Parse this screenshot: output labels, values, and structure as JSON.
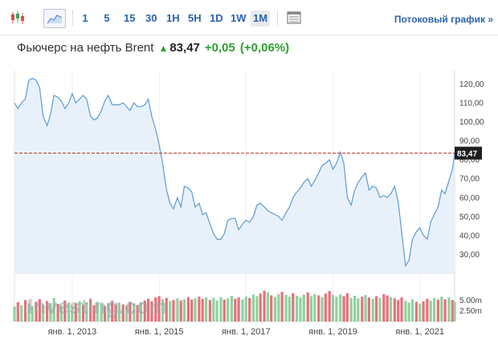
{
  "toolbar": {
    "timeframes": [
      "1",
      "5",
      "15",
      "30",
      "1H",
      "5H",
      "1D",
      "1W",
      "1M"
    ],
    "active_timeframe": "1M",
    "stream_link": "Потоковый график »"
  },
  "header": {
    "instrument": "Фьючерс на нефть Brent",
    "price": "83,47",
    "change": "+0,05",
    "change_pct": "(+0,06%)",
    "arrow_color": "#2ca02c"
  },
  "watermark": "Investing.com",
  "colors": {
    "line": "#5b9bd5",
    "area": "#e8f1fa",
    "price_line": "#c0392b",
    "vol_up": "#8fd19e",
    "vol_down": "#e8707a",
    "link": "#2a63ad"
  },
  "chart_data": {
    "type": "area",
    "y_ticks": [
      "120,00",
      "110,00",
      "100,00",
      "90,00",
      "80,00",
      "70,00",
      "60,00",
      "50,00",
      "40,00",
      "30,00"
    ],
    "ylim": [
      20,
      127
    ],
    "current_price": 83.47,
    "current_price_label": "83,47",
    "x_ticks": [
      "янв. 1, 2013",
      "янв. 1, 2015",
      "янв. 1, 2017",
      "янв. 1, 2019",
      "янв. 1, 2021"
    ],
    "x_tick_years": [
      2013,
      2015,
      2017,
      2019,
      2021
    ],
    "x_range": [
      2011.67,
      2021.8
    ],
    "series": [
      {
        "points": [
          [
            2011.67,
            110
          ],
          [
            2011.75,
            107
          ],
          [
            2011.83,
            110
          ],
          [
            2011.92,
            112
          ],
          [
            2012.0,
            122
          ],
          [
            2012.08,
            123
          ],
          [
            2012.17,
            122
          ],
          [
            2012.25,
            118
          ],
          [
            2012.33,
            103
          ],
          [
            2012.42,
            98
          ],
          [
            2012.5,
            104
          ],
          [
            2012.58,
            114
          ],
          [
            2012.67,
            113
          ],
          [
            2012.75,
            111
          ],
          [
            2012.83,
            107
          ],
          [
            2012.92,
            110
          ],
          [
            2013.0,
            115
          ],
          [
            2013.08,
            110
          ],
          [
            2013.17,
            112
          ],
          [
            2013.25,
            114
          ],
          [
            2013.33,
            112
          ],
          [
            2013.42,
            103
          ],
          [
            2013.5,
            101
          ],
          [
            2013.58,
            102
          ],
          [
            2013.67,
            106
          ],
          [
            2013.75,
            111
          ],
          [
            2013.83,
            114
          ],
          [
            2013.92,
            109
          ],
          [
            2014.0,
            109
          ],
          [
            2014.08,
            109
          ],
          [
            2014.17,
            110
          ],
          [
            2014.25,
            108
          ],
          [
            2014.33,
            106
          ],
          [
            2014.42,
            110
          ],
          [
            2014.5,
            108
          ],
          [
            2014.58,
            108
          ],
          [
            2014.67,
            109
          ],
          [
            2014.75,
            112
          ],
          [
            2014.83,
            103
          ],
          [
            2014.92,
            96
          ],
          [
            2015.0,
            88
          ],
          [
            2015.08,
            78
          ],
          [
            2015.17,
            64
          ],
          [
            2015.25,
            57
          ],
          [
            2015.33,
            54
          ],
          [
            2015.42,
            60
          ],
          [
            2015.5,
            55
          ],
          [
            2015.58,
            66
          ],
          [
            2015.67,
            65
          ],
          [
            2015.75,
            63
          ],
          [
            2015.83,
            55
          ],
          [
            2015.92,
            57
          ],
          [
            2016.0,
            51
          ],
          [
            2016.08,
            52
          ],
          [
            2016.17,
            46
          ],
          [
            2016.25,
            41
          ],
          [
            2016.33,
            38
          ],
          [
            2016.42,
            38
          ],
          [
            2016.5,
            41
          ],
          [
            2016.58,
            48
          ],
          [
            2016.67,
            49
          ],
          [
            2016.75,
            49
          ],
          [
            2016.83,
            43
          ],
          [
            2016.92,
            46
          ],
          [
            2017.0,
            48
          ],
          [
            2017.08,
            47
          ],
          [
            2017.17,
            50
          ],
          [
            2017.25,
            56
          ],
          [
            2017.33,
            57
          ],
          [
            2017.42,
            55
          ],
          [
            2017.5,
            53
          ],
          [
            2017.58,
            52
          ],
          [
            2017.67,
            51
          ],
          [
            2017.75,
            50
          ],
          [
            2017.83,
            48
          ],
          [
            2017.92,
            52
          ],
          [
            2018.0,
            55
          ],
          [
            2018.08,
            60
          ],
          [
            2018.17,
            63
          ],
          [
            2018.25,
            65
          ],
          [
            2018.33,
            68
          ],
          [
            2018.42,
            70
          ],
          [
            2018.5,
            66
          ],
          [
            2018.58,
            69
          ],
          [
            2018.67,
            73
          ],
          [
            2018.75,
            77
          ],
          [
            2018.83,
            78
          ],
          [
            2018.92,
            80
          ],
          [
            2019.0,
            75
          ],
          [
            2019.08,
            78
          ],
          [
            2019.17,
            84
          ],
          [
            2019.25,
            78
          ],
          [
            2019.33,
            60
          ],
          [
            2019.42,
            56
          ],
          [
            2019.5,
            64
          ],
          [
            2019.58,
            68
          ],
          [
            2019.67,
            71
          ],
          [
            2019.75,
            73
          ],
          [
            2019.83,
            64
          ],
          [
            2019.92,
            66
          ],
          [
            2020.0,
            65
          ],
          [
            2020.08,
            60
          ],
          [
            2020.17,
            61
          ],
          [
            2020.25,
            60
          ],
          [
            2020.33,
            62
          ],
          [
            2020.42,
            66
          ],
          [
            2020.5,
            58
          ],
          [
            2020.58,
            42
          ],
          [
            2020.67,
            24
          ],
          [
            2020.75,
            27
          ],
          [
            2020.83,
            38
          ],
          [
            2020.92,
            42
          ],
          [
            2021.0,
            44
          ],
          [
            2021.08,
            40
          ],
          [
            2021.17,
            38
          ],
          [
            2021.25,
            47
          ],
          [
            2021.33,
            51
          ],
          [
            2021.42,
            55
          ],
          [
            2021.5,
            64
          ],
          [
            2021.58,
            62
          ],
          [
            2021.67,
            69
          ],
          [
            2021.75,
            75
          ],
          [
            2021.8,
            83.47
          ]
        ]
      }
    ],
    "volume": {
      "y_ticks": [
        "5.00m",
        "2.50m"
      ],
      "ylim": [
        0,
        9
      ],
      "bars": [
        [
          2011.67,
          3.5,
          "up"
        ],
        [
          2011.75,
          4.5,
          "down"
        ],
        [
          2011.83,
          3.8,
          "up"
        ],
        [
          2011.92,
          5.0,
          "down"
        ],
        [
          2012.0,
          4.2,
          "up"
        ],
        [
          2012.08,
          3.6,
          "up"
        ],
        [
          2012.17,
          4.6,
          "down"
        ],
        [
          2012.25,
          5.2,
          "down"
        ],
        [
          2012.33,
          3.9,
          "up"
        ],
        [
          2012.42,
          4.8,
          "down"
        ],
        [
          2012.5,
          4.3,
          "up"
        ],
        [
          2012.58,
          5.5,
          "up"
        ],
        [
          2012.67,
          4.1,
          "down"
        ],
        [
          2012.75,
          3.7,
          "up"
        ],
        [
          2012.83,
          4.9,
          "down"
        ],
        [
          2012.92,
          4.4,
          "up"
        ],
        [
          2013.0,
          3.5,
          "up"
        ],
        [
          2013.08,
          4.2,
          "down"
        ],
        [
          2013.17,
          4.7,
          "up"
        ],
        [
          2013.25,
          3.9,
          "down"
        ],
        [
          2013.33,
          4.5,
          "up"
        ],
        [
          2013.42,
          5.1,
          "down"
        ],
        [
          2013.5,
          3.8,
          "down"
        ],
        [
          2013.58,
          4.6,
          "up"
        ],
        [
          2013.67,
          4.0,
          "up"
        ],
        [
          2013.75,
          3.6,
          "down"
        ],
        [
          2013.83,
          4.3,
          "up"
        ],
        [
          2013.92,
          4.8,
          "down"
        ],
        [
          2014.0,
          3.9,
          "down"
        ],
        [
          2014.08,
          4.4,
          "up"
        ],
        [
          2014.17,
          4.0,
          "down"
        ],
        [
          2014.25,
          3.7,
          "up"
        ],
        [
          2014.33,
          4.6,
          "down"
        ],
        [
          2014.42,
          4.2,
          "up"
        ],
        [
          2014.5,
          3.8,
          "down"
        ],
        [
          2014.58,
          4.5,
          "up"
        ],
        [
          2014.67,
          4.9,
          "down"
        ],
        [
          2014.75,
          5.3,
          "down"
        ],
        [
          2014.83,
          4.7,
          "down"
        ],
        [
          2014.92,
          5.6,
          "down"
        ],
        [
          2015.0,
          5.9,
          "down"
        ],
        [
          2015.08,
          5.2,
          "up"
        ],
        [
          2015.17,
          5.5,
          "down"
        ],
        [
          2015.25,
          4.8,
          "up"
        ],
        [
          2015.33,
          5.0,
          "down"
        ],
        [
          2015.42,
          5.4,
          "up"
        ],
        [
          2015.5,
          4.9,
          "down"
        ],
        [
          2015.58,
          5.2,
          "up"
        ],
        [
          2015.67,
          5.7,
          "down"
        ],
        [
          2015.75,
          5.1,
          "down"
        ],
        [
          2015.83,
          5.4,
          "up"
        ],
        [
          2015.92,
          5.8,
          "down"
        ],
        [
          2016.0,
          5.3,
          "down"
        ],
        [
          2016.08,
          5.6,
          "up"
        ],
        [
          2016.17,
          5.0,
          "down"
        ],
        [
          2016.25,
          5.5,
          "up"
        ],
        [
          2016.33,
          4.9,
          "up"
        ],
        [
          2016.42,
          5.7,
          "up"
        ],
        [
          2016.5,
          5.1,
          "down"
        ],
        [
          2016.58,
          5.4,
          "up"
        ],
        [
          2016.67,
          6.0,
          "up"
        ],
        [
          2016.75,
          5.3,
          "down"
        ],
        [
          2016.83,
          5.6,
          "down"
        ],
        [
          2016.92,
          5.2,
          "up"
        ],
        [
          2017.0,
          5.8,
          "up"
        ],
        [
          2017.08,
          5.5,
          "down"
        ],
        [
          2017.17,
          6.3,
          "up"
        ],
        [
          2017.25,
          5.9,
          "up"
        ],
        [
          2017.33,
          6.5,
          "down"
        ],
        [
          2017.42,
          7.2,
          "down"
        ],
        [
          2017.5,
          6.8,
          "up"
        ],
        [
          2017.58,
          6.1,
          "down"
        ],
        [
          2017.67,
          5.7,
          "up"
        ],
        [
          2017.75,
          6.4,
          "up"
        ],
        [
          2017.83,
          6.9,
          "down"
        ],
        [
          2017.92,
          6.2,
          "up"
        ],
        [
          2018.0,
          5.8,
          "up"
        ],
        [
          2018.08,
          6.6,
          "down"
        ],
        [
          2018.17,
          6.0,
          "up"
        ],
        [
          2018.25,
          5.6,
          "up"
        ],
        [
          2018.33,
          6.3,
          "up"
        ],
        [
          2018.42,
          6.8,
          "down"
        ],
        [
          2018.5,
          5.9,
          "up"
        ],
        [
          2018.58,
          6.4,
          "up"
        ],
        [
          2018.67,
          6.1,
          "down"
        ],
        [
          2018.75,
          5.7,
          "up"
        ],
        [
          2018.83,
          6.5,
          "down"
        ],
        [
          2018.92,
          7.1,
          "down"
        ],
        [
          2019.0,
          6.2,
          "up"
        ],
        [
          2019.08,
          5.8,
          "up"
        ],
        [
          2019.17,
          6.3,
          "up"
        ],
        [
          2019.25,
          5.9,
          "down"
        ],
        [
          2019.33,
          6.6,
          "down"
        ],
        [
          2019.42,
          5.5,
          "up"
        ],
        [
          2019.5,
          6.0,
          "up"
        ],
        [
          2019.58,
          5.4,
          "up"
        ],
        [
          2019.67,
          5.8,
          "down"
        ],
        [
          2019.75,
          6.2,
          "up"
        ],
        [
          2019.83,
          5.6,
          "down"
        ],
        [
          2019.92,
          5.3,
          "up"
        ],
        [
          2020.0,
          5.9,
          "down"
        ],
        [
          2020.08,
          5.5,
          "up"
        ],
        [
          2020.17,
          6.4,
          "down"
        ],
        [
          2020.25,
          6.1,
          "down"
        ],
        [
          2020.33,
          5.7,
          "up"
        ],
        [
          2020.42,
          5.4,
          "down"
        ],
        [
          2020.5,
          5.0,
          "down"
        ],
        [
          2020.58,
          5.6,
          "down"
        ],
        [
          2020.67,
          4.8,
          "up"
        ],
        [
          2020.75,
          4.4,
          "up"
        ],
        [
          2020.83,
          5.2,
          "up"
        ],
        [
          2020.92,
          4.6,
          "down"
        ],
        [
          2021.0,
          4.2,
          "up"
        ],
        [
          2021.08,
          4.7,
          "down"
        ],
        [
          2021.17,
          5.3,
          "down"
        ],
        [
          2021.25,
          4.9,
          "up"
        ],
        [
          2021.33,
          5.5,
          "up"
        ],
        [
          2021.42,
          5.1,
          "down"
        ],
        [
          2021.5,
          5.8,
          "up"
        ],
        [
          2021.58,
          5.2,
          "down"
        ],
        [
          2021.67,
          5.6,
          "up"
        ],
        [
          2021.75,
          5.0,
          "down"
        ],
        [
          2021.8,
          4.6,
          "up"
        ]
      ]
    }
  }
}
